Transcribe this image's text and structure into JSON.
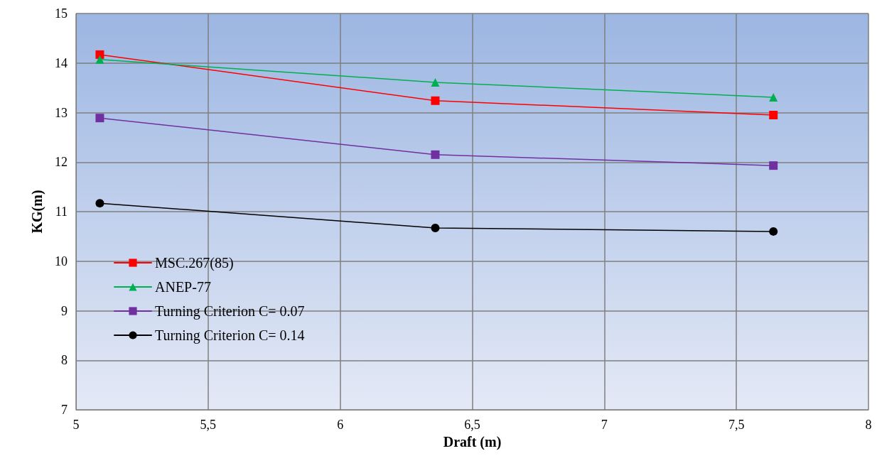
{
  "chart_data": {
    "type": "line",
    "xlabel": "Draft (m)",
    "ylabel": "KG(m)",
    "xlim": [
      5,
      8
    ],
    "xticks": [
      5,
      {
        "value": 5.5,
        "label": "5,5"
      },
      6,
      {
        "value": 6.5,
        "label": "6,5"
      },
      7,
      {
        "value": 7.5,
        "label": "7,5"
      },
      8
    ],
    "ylim": [
      7,
      15
    ],
    "yticks": [
      7,
      8,
      9,
      10,
      11,
      12,
      13,
      14,
      15
    ],
    "grid": true,
    "legend": "bottom left",
    "line_style": "solid",
    "series": [
      {
        "name": "MSC.267(85)",
        "color": "#ff0000",
        "marker": "square",
        "x": [
          5.09,
          6.36,
          7.64
        ],
        "values": [
          14.17,
          13.24,
          12.95
        ]
      },
      {
        "name": "ANEP-77",
        "color": "#00b050",
        "marker": "triangle",
        "x": [
          5.09,
          6.36,
          7.64
        ],
        "values": [
          14.07,
          13.61,
          13.31
        ]
      },
      {
        "name": "Turning Criterion C= 0.07",
        "color": "#7030a0",
        "marker": "square",
        "x": [
          5.09,
          6.36,
          7.64
        ],
        "values": [
          12.89,
          12.15,
          11.93
        ]
      },
      {
        "name": "Turning Criterion C= 0.14",
        "color": "#000000",
        "marker": "circle",
        "x": [
          5.09,
          6.36,
          7.64
        ],
        "values": [
          11.17,
          10.67,
          10.6
        ]
      }
    ]
  }
}
